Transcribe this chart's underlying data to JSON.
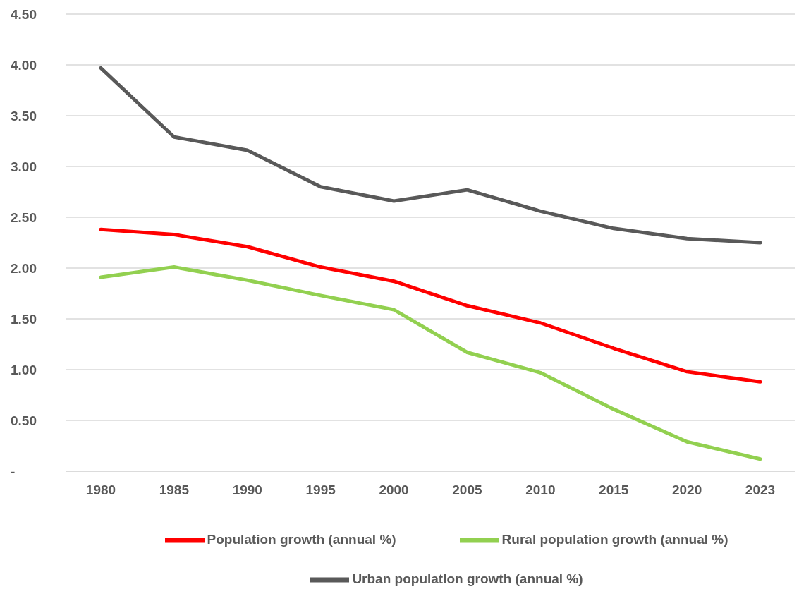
{
  "chart_data": {
    "type": "line",
    "categories": [
      "1980",
      "1985",
      "1990",
      "1995",
      "2000",
      "2005",
      "2010",
      "2015",
      "2020",
      "2023"
    ],
    "series": [
      {
        "name": "Population growth (annual %)",
        "color": "#ff0000",
        "values": [
          2.38,
          2.33,
          2.21,
          2.01,
          1.87,
          1.63,
          1.46,
          1.21,
          0.98,
          0.88
        ]
      },
      {
        "name": "Rural population growth (annual %)",
        "color": "#92d050",
        "values": [
          1.91,
          2.01,
          1.88,
          1.73,
          1.59,
          1.17,
          0.97,
          0.61,
          0.29,
          0.12
        ]
      },
      {
        "name": "Urban population growth (annual %)",
        "color": "#595959",
        "values": [
          3.97,
          3.29,
          3.16,
          2.8,
          2.66,
          2.77,
          2.56,
          2.39,
          2.29,
          2.25
        ]
      }
    ],
    "ylim": [
      0,
      4.5
    ],
    "yticks": [
      {
        "value": 0,
        "label": "-"
      },
      {
        "value": 0.5,
        "label": "0.50"
      },
      {
        "value": 1,
        "label": "1.00"
      },
      {
        "value": 1.5,
        "label": "1.50"
      },
      {
        "value": 2,
        "label": "2.00"
      },
      {
        "value": 2.5,
        "label": "2.50"
      },
      {
        "value": 3,
        "label": "3.00"
      },
      {
        "value": 3.5,
        "label": "3.50"
      },
      {
        "value": 4,
        "label": "4.00"
      },
      {
        "value": 4.5,
        "label": "4.50"
      }
    ],
    "grid": "y",
    "legend": "bottom",
    "marker": "none",
    "line_style": "solid"
  }
}
